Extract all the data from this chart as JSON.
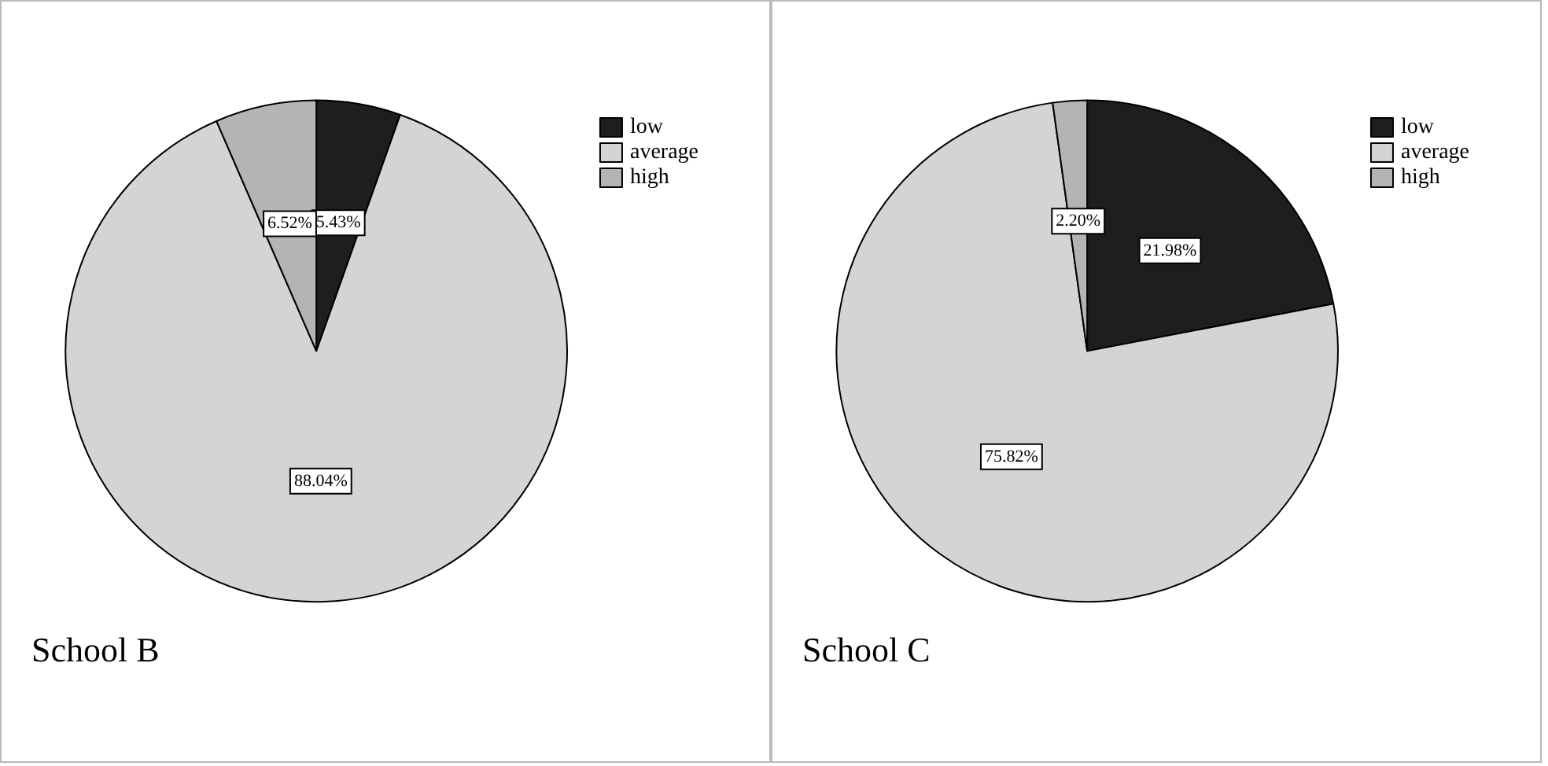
{
  "chart_data": [
    {
      "type": "pie",
      "title": "School B",
      "categories": [
        "low",
        "average",
        "high"
      ],
      "values": [
        5.43,
        88.04,
        6.52
      ],
      "value_labels": [
        "5.43%",
        "88.04%",
        "6.52%"
      ],
      "colors": [
        "#1e1e1e",
        "#d4d4d4",
        "#b4b4b4"
      ],
      "legend": "top right"
    },
    {
      "type": "pie",
      "title": "School C",
      "categories": [
        "low",
        "average",
        "high"
      ],
      "values": [
        21.98,
        75.82,
        2.2
      ],
      "value_labels": [
        "21.98%",
        "75.82%",
        "2.20%"
      ],
      "colors": [
        "#1e1e1e",
        "#d4d4d4",
        "#b4b4b4"
      ],
      "legend": "top right"
    }
  ]
}
